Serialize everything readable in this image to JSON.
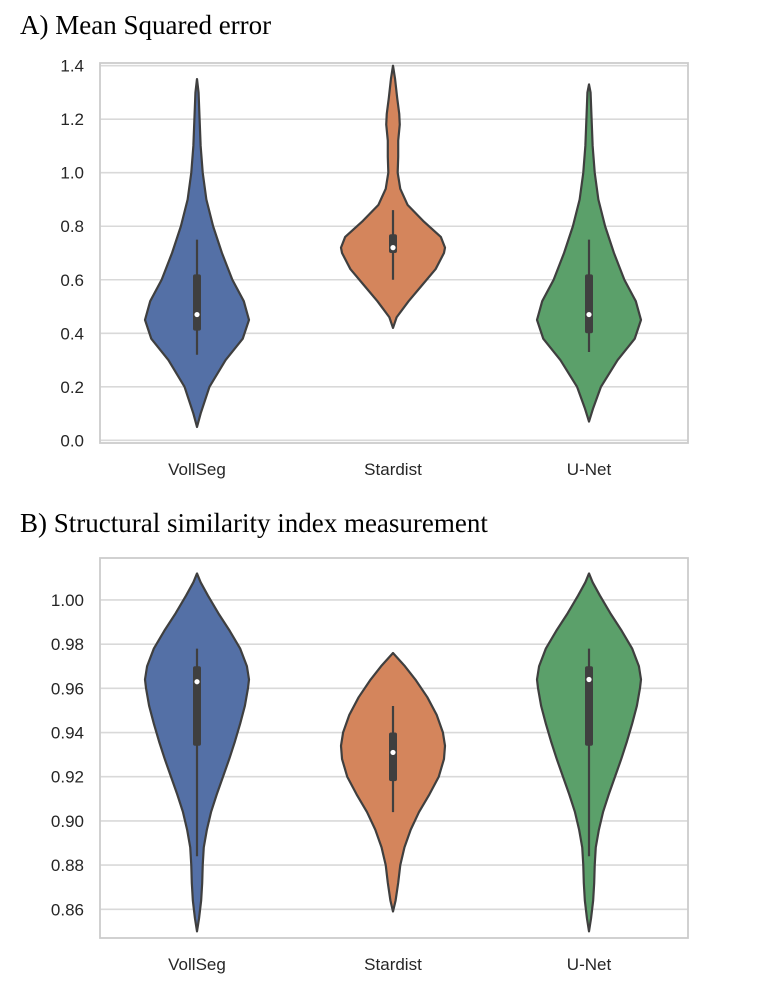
{
  "chart_data": [
    {
      "type": "violin",
      "title": "A) Mean Squared error",
      "xlabel": "",
      "ylabel": "",
      "categories": [
        "VollSeg",
        "Stardist",
        "U-Net"
      ],
      "colors": [
        "#5470a6",
        "#d4855c",
        "#5ba06a"
      ],
      "ylim": [
        -0.01,
        1.41
      ],
      "yticks": [
        "0.0",
        "0.2",
        "0.4",
        "0.6",
        "0.8",
        "1.0",
        "1.2",
        "1.4"
      ],
      "grid": true,
      "series": [
        {
          "category": "VollSeg",
          "range": [
            0.05,
            1.35
          ],
          "median": 0.47,
          "q1": 0.41,
          "q3": 0.62,
          "whiskers": [
            0.32,
            0.75
          ],
          "density": [
            [
              0.05,
              0.0
            ],
            [
              0.1,
              0.07
            ],
            [
              0.2,
              0.24
            ],
            [
              0.3,
              0.55
            ],
            [
              0.38,
              0.88
            ],
            [
              0.45,
              1.0
            ],
            [
              0.52,
              0.9
            ],
            [
              0.6,
              0.68
            ],
            [
              0.7,
              0.48
            ],
            [
              0.8,
              0.31
            ],
            [
              0.9,
              0.18
            ],
            [
              1.0,
              0.11
            ],
            [
              1.1,
              0.07
            ],
            [
              1.2,
              0.05
            ],
            [
              1.3,
              0.03
            ],
            [
              1.35,
              0.0
            ]
          ]
        },
        {
          "category": "Stardist",
          "range": [
            0.42,
            1.4
          ],
          "median": 0.72,
          "q1": 0.7,
          "q3": 0.77,
          "whiskers": [
            0.6,
            0.86
          ],
          "density": [
            [
              0.42,
              0.0
            ],
            [
              0.46,
              0.07
            ],
            [
              0.52,
              0.3
            ],
            [
              0.58,
              0.56
            ],
            [
              0.64,
              0.82
            ],
            [
              0.7,
              0.98
            ],
            [
              0.72,
              1.0
            ],
            [
              0.76,
              0.92
            ],
            [
              0.82,
              0.58
            ],
            [
              0.88,
              0.28
            ],
            [
              0.94,
              0.14
            ],
            [
              1.0,
              0.09
            ],
            [
              1.06,
              0.1
            ],
            [
              1.12,
              0.1
            ],
            [
              1.18,
              0.13
            ],
            [
              1.22,
              0.12
            ],
            [
              1.28,
              0.08
            ],
            [
              1.35,
              0.04
            ],
            [
              1.4,
              0.0
            ]
          ]
        },
        {
          "category": "U-Net",
          "range": [
            0.07,
            1.33
          ],
          "median": 0.47,
          "q1": 0.4,
          "q3": 0.62,
          "whiskers": [
            0.33,
            0.75
          ],
          "density": [
            [
              0.07,
              0.0
            ],
            [
              0.12,
              0.08
            ],
            [
              0.2,
              0.23
            ],
            [
              0.3,
              0.55
            ],
            [
              0.38,
              0.88
            ],
            [
              0.45,
              1.0
            ],
            [
              0.52,
              0.9
            ],
            [
              0.6,
              0.68
            ],
            [
              0.7,
              0.48
            ],
            [
              0.8,
              0.31
            ],
            [
              0.9,
              0.18
            ],
            [
              1.0,
              0.11
            ],
            [
              1.1,
              0.07
            ],
            [
              1.2,
              0.05
            ],
            [
              1.3,
              0.03
            ],
            [
              1.33,
              0.0
            ]
          ]
        }
      ]
    },
    {
      "type": "violin",
      "title": "B) Structural similarity index measurement",
      "xlabel": "",
      "ylabel": "",
      "categories": [
        "VollSeg",
        "Stardist",
        "U-Net"
      ],
      "colors": [
        "#5470a6",
        "#d4855c",
        "#5ba06a"
      ],
      "ylim": [
        0.847,
        1.019
      ],
      "yticks": [
        "0.86",
        "0.88",
        "0.90",
        "0.92",
        "0.94",
        "0.96",
        "0.98",
        "1.00"
      ],
      "grid": true,
      "series": [
        {
          "category": "VollSeg",
          "range": [
            0.85,
            1.012
          ],
          "median": 0.963,
          "q1": 0.934,
          "q3": 0.97,
          "whiskers": [
            0.884,
            0.978
          ],
          "density": [
            [
              0.85,
              0.0
            ],
            [
              0.856,
              0.04
            ],
            [
              0.864,
              0.08
            ],
            [
              0.872,
              0.1
            ],
            [
              0.88,
              0.11
            ],
            [
              0.888,
              0.13
            ],
            [
              0.896,
              0.19
            ],
            [
              0.904,
              0.27
            ],
            [
              0.912,
              0.38
            ],
            [
              0.92,
              0.5
            ],
            [
              0.928,
              0.62
            ],
            [
              0.936,
              0.73
            ],
            [
              0.944,
              0.83
            ],
            [
              0.952,
              0.92
            ],
            [
              0.96,
              0.98
            ],
            [
              0.964,
              1.0
            ],
            [
              0.97,
              0.96
            ],
            [
              0.978,
              0.83
            ],
            [
              0.986,
              0.63
            ],
            [
              0.994,
              0.41
            ],
            [
              1.002,
              0.21
            ],
            [
              1.008,
              0.07
            ],
            [
              1.012,
              0.0
            ]
          ]
        },
        {
          "category": "Stardist",
          "range": [
            0.859,
            0.976
          ],
          "median": 0.931,
          "q1": 0.918,
          "q3": 0.94,
          "whiskers": [
            0.904,
            0.952
          ],
          "density": [
            [
              0.859,
              0.0
            ],
            [
              0.864,
              0.05
            ],
            [
              0.872,
              0.1
            ],
            [
              0.88,
              0.14
            ],
            [
              0.888,
              0.22
            ],
            [
              0.896,
              0.34
            ],
            [
              0.904,
              0.5
            ],
            [
              0.912,
              0.7
            ],
            [
              0.92,
              0.88
            ],
            [
              0.928,
              0.98
            ],
            [
              0.934,
              1.0
            ],
            [
              0.94,
              0.96
            ],
            [
              0.948,
              0.84
            ],
            [
              0.956,
              0.66
            ],
            [
              0.964,
              0.43
            ],
            [
              0.97,
              0.23
            ],
            [
              0.976,
              0.0
            ]
          ]
        },
        {
          "category": "U-Net",
          "range": [
            0.85,
            1.012
          ],
          "median": 0.964,
          "q1": 0.934,
          "q3": 0.97,
          "whiskers": [
            0.884,
            0.978
          ],
          "density": [
            [
              0.85,
              0.0
            ],
            [
              0.856,
              0.04
            ],
            [
              0.864,
              0.08
            ],
            [
              0.872,
              0.1
            ],
            [
              0.88,
              0.11
            ],
            [
              0.888,
              0.13
            ],
            [
              0.896,
              0.19
            ],
            [
              0.904,
              0.27
            ],
            [
              0.912,
              0.38
            ],
            [
              0.92,
              0.5
            ],
            [
              0.928,
              0.62
            ],
            [
              0.936,
              0.73
            ],
            [
              0.944,
              0.83
            ],
            [
              0.952,
              0.92
            ],
            [
              0.96,
              0.98
            ],
            [
              0.964,
              1.0
            ],
            [
              0.97,
              0.96
            ],
            [
              0.978,
              0.83
            ],
            [
              0.986,
              0.63
            ],
            [
              0.994,
              0.41
            ],
            [
              1.002,
              0.21
            ],
            [
              1.008,
              0.07
            ],
            [
              1.012,
              0.0
            ]
          ]
        }
      ]
    }
  ]
}
